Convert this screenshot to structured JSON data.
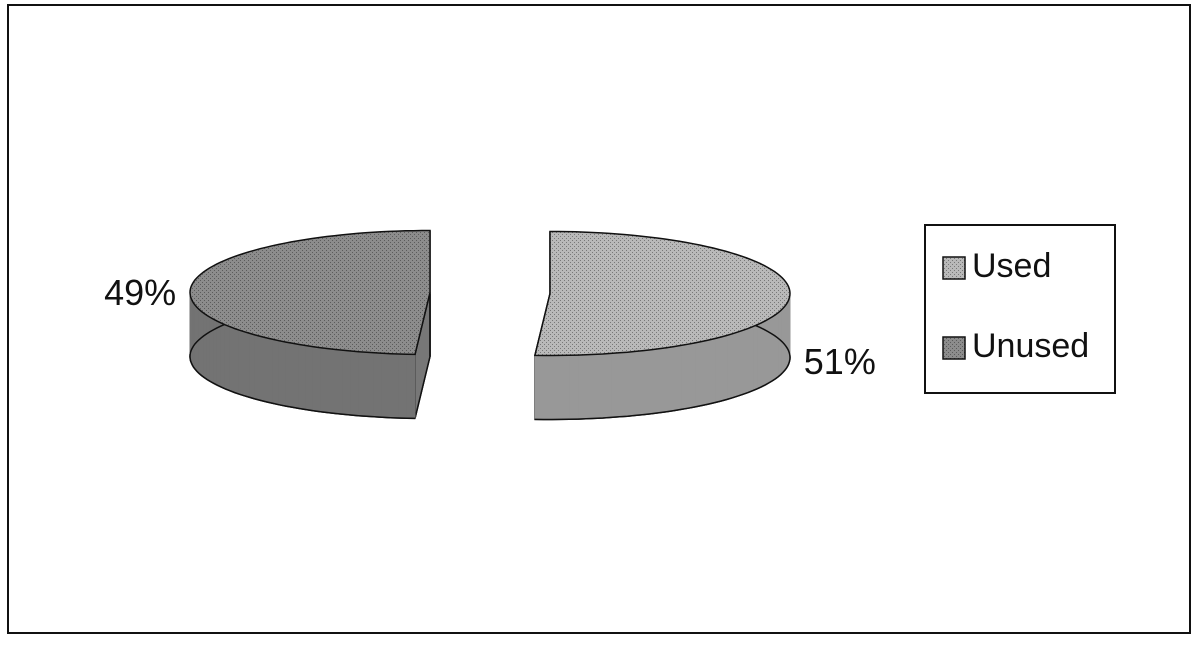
{
  "chart_data": {
    "type": "pie",
    "categories": [
      "Used",
      "Unused"
    ],
    "values": [
      51,
      49
    ],
    "value_labels": [
      "51%",
      "49%"
    ],
    "colors": [
      "#b9b9b9",
      "#8c8c8c"
    ],
    "exploded": true,
    "three_d": true,
    "legend": "right"
  }
}
